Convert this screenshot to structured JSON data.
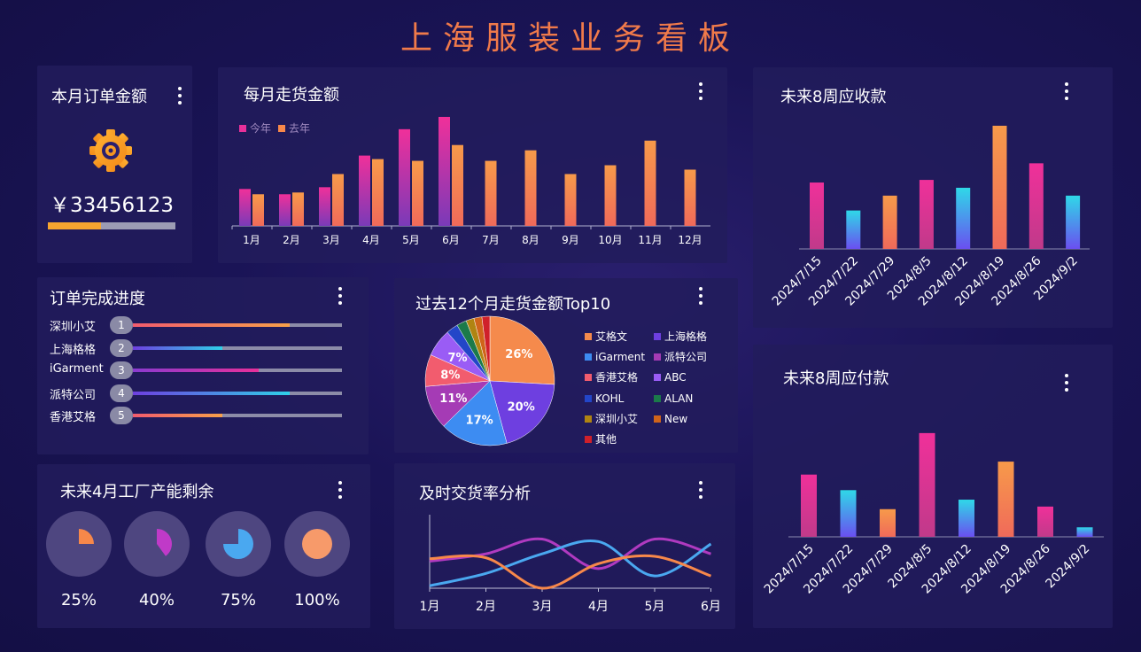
{
  "title": "上海服装业务看板",
  "order_amount": {
    "title": "本月订单金额",
    "icon": "gear-icon",
    "value": "￥33456123",
    "progress": 0.42
  },
  "chart_data": [
    {
      "id": "monthly",
      "type": "bar",
      "title": "每月走货金额",
      "categories": [
        "1月",
        "2月",
        "3月",
        "4月",
        "5月",
        "6月",
        "7月",
        "8月",
        "9月",
        "10月",
        "11月",
        "12月"
      ],
      "series": [
        {
          "name": "今年",
          "values": [
            42,
            36,
            44,
            80,
            110,
            124,
            null,
            null,
            null,
            null,
            null,
            null
          ]
        },
        {
          "name": "去年",
          "values": [
            36,
            38,
            59,
            76,
            74,
            92,
            74,
            86,
            59,
            69,
            97,
            64
          ]
        }
      ],
      "ylim": [
        0,
        130
      ],
      "legend": "top-left",
      "colors": {
        "今年": "#e8309a",
        "去年": "#f7884a"
      }
    },
    {
      "id": "receivable",
      "type": "bar",
      "title": "未来8周应收款",
      "categories": [
        "2024/7/15",
        "2024/7/22",
        "2024/7/29",
        "2024/8/5",
        "2024/8/12",
        "2024/8/19",
        "2024/8/26",
        "2024/9/2"
      ],
      "values": [
        76,
        44,
        61,
        79,
        70,
        141,
        98,
        61
      ],
      "ylim": [
        0,
        145
      ]
    },
    {
      "id": "payable",
      "type": "bar",
      "title": "未来8周应付款",
      "categories": [
        "2024/7/15",
        "2024/7/22",
        "2024/7/29",
        "2024/8/5",
        "2024/8/12",
        "2024/8/19",
        "2024/8/26",
        "2024/9/2"
      ],
      "values": [
        72,
        54,
        32,
        120,
        43,
        87,
        35,
        11
      ],
      "ylim": [
        0,
        125
      ]
    },
    {
      "id": "top10",
      "type": "pie",
      "title": "过去12个月走货金额Top10",
      "slices": [
        {
          "name": "艾格文",
          "value": 26,
          "label": "26%",
          "color": "#f58a4c"
        },
        {
          "name": "上海格格",
          "value": 20,
          "label": "20%",
          "color": "#6e3fe0"
        },
        {
          "name": "iGarment",
          "value": 17,
          "label": "17%",
          "color": "#3d8cf2"
        },
        {
          "name": "派特公司",
          "value": 11,
          "label": "11%",
          "color": "#a53bb5"
        },
        {
          "name": "香港艾格",
          "value": 8,
          "label": "8%",
          "color": "#f25c6e"
        },
        {
          "name": "ABC",
          "value": 7,
          "label": "7%",
          "color": "#9a5cf5"
        },
        {
          "name": "KOHL",
          "value": 3,
          "label": "",
          "color": "#2346c8"
        },
        {
          "name": "ALAN",
          "value": 2.5,
          "label": "",
          "color": "#1b7a4a"
        },
        {
          "name": "深圳小艾",
          "value": 2,
          "label": "",
          "color": "#b08412"
        },
        {
          "name": "New",
          "value": 2,
          "label": "",
          "color": "#d0641a"
        },
        {
          "name": "其他",
          "value": 2,
          "label": "",
          "color": "#d0202a"
        }
      ]
    },
    {
      "id": "ontime",
      "type": "line",
      "title": "及时交货率分析",
      "categories": [
        "1月",
        "2月",
        "3月",
        "4月",
        "5月",
        "6月"
      ],
      "series": [
        {
          "values": [
            55,
            70,
            100,
            40,
            100,
            70
          ],
          "color": "#b03ac0"
        },
        {
          "values": [
            5,
            30,
            70,
            95,
            25,
            90
          ],
          "color": "#4aa8f0"
        },
        {
          "values": [
            60,
            62,
            0,
            50,
            65,
            25
          ],
          "color": "#f7884a"
        }
      ],
      "ylim": [
        0,
        110
      ]
    }
  ],
  "progress_panel": {
    "title": "订单完成进度",
    "items": [
      {
        "name": "深圳小艾",
        "rank": "1",
        "value": 0.75,
        "color_a": "#f25c6e",
        "color_b": "#f7a04a"
      },
      {
        "name": "上海格格",
        "rank": "2",
        "value": 0.43,
        "color_a": "#6e3fe0",
        "color_b": "#2fd0e8"
      },
      {
        "name": "iGarment",
        "rank": "3",
        "value": 0.6,
        "color_a": "#8a3ad0",
        "color_b": "#e8309a"
      },
      {
        "name": "派特公司",
        "rank": "4",
        "value": 0.75,
        "color_a": "#6e3fe0",
        "color_b": "#2fd0e8"
      },
      {
        "name": "香港艾格",
        "rank": "5",
        "value": 0.43,
        "color_a": "#f25c6e",
        "color_b": "#f7a04a"
      }
    ]
  },
  "capacity": {
    "title": "未来4月工厂产能剩余",
    "items": [
      {
        "value": 0.25,
        "label": "25%",
        "color": "#f7884a"
      },
      {
        "value": 0.4,
        "label": "40%",
        "color": "#c03ac8"
      },
      {
        "value": 0.75,
        "label": "75%",
        "color": "#4aa8f0"
      },
      {
        "value": 1.0,
        "label": "100%",
        "color": "#f79a6a"
      }
    ]
  }
}
